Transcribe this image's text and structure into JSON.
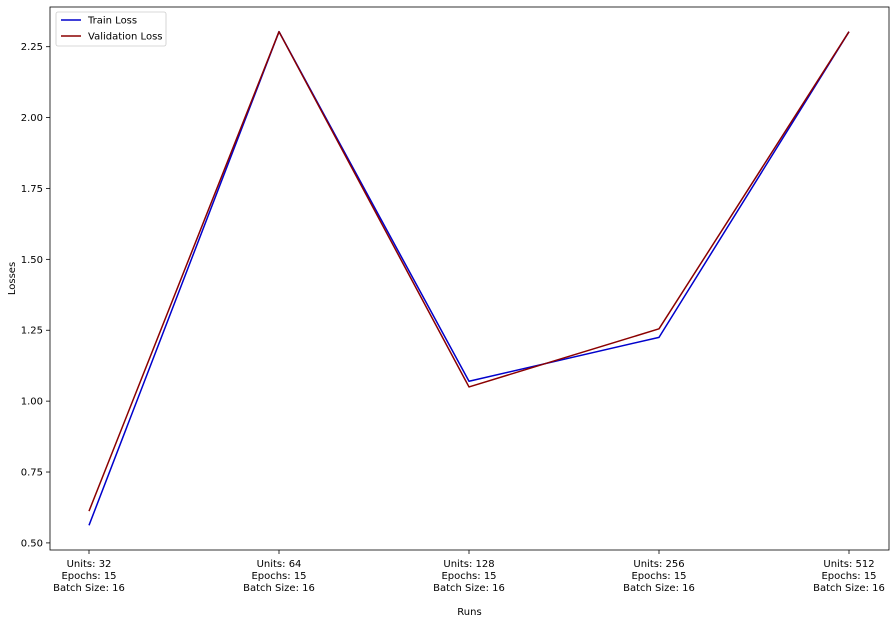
{
  "chart_data": {
    "type": "line",
    "title": "",
    "xlabel": "Runs",
    "ylabel": "Losses",
    "categories": [
      [
        "Units: 32",
        "Epochs: 15",
        "Batch Size: 16"
      ],
      [
        "Units: 64",
        "Epochs: 15",
        "Batch Size: 16"
      ],
      [
        "Units: 128",
        "Epochs: 15",
        "Batch Size: 16"
      ],
      [
        "Units: 256",
        "Epochs: 15",
        "Batch Size: 16"
      ],
      [
        "Units: 512",
        "Epochs: 15",
        "Batch Size: 16"
      ]
    ],
    "series": [
      {
        "name": "Train Loss",
        "color": "#0000cc",
        "values": [
          0.562,
          2.303,
          1.07,
          1.225,
          2.303
        ]
      },
      {
        "name": "Validation Loss",
        "color": "#8b0000",
        "values": [
          0.612,
          2.303,
          1.05,
          1.255,
          2.303
        ]
      }
    ],
    "ylim": [
      0.475,
      2.39
    ],
    "yticks": [
      "0.50",
      "0.75",
      "1.00",
      "1.25",
      "1.50",
      "1.75",
      "2.00",
      "2.25"
    ],
    "grid": false,
    "legend": "top-left"
  }
}
